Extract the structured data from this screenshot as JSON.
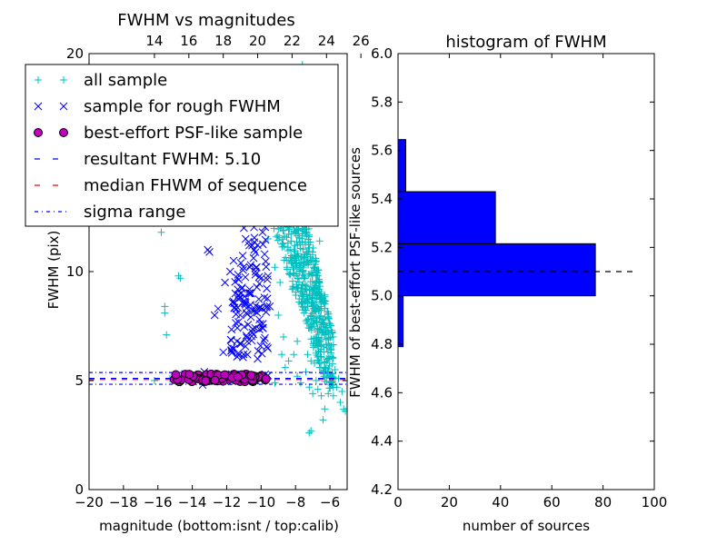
{
  "chart_data": [
    {
      "type": "scatter",
      "title": "FWHM vs magnitudes",
      "xlabel": "magnitude (bottom:isnt / top:calib)",
      "ylabel": "FWHM (pix)",
      "xlim": [
        -20,
        -5
      ],
      "ylim": [
        0,
        20
      ],
      "x_ticks": [
        -20,
        -18,
        -16,
        -14,
        -12,
        -10,
        -8,
        -6
      ],
      "x_tick_labels": [
        "−20",
        "−18",
        "−16",
        "−14",
        "−12",
        "−10",
        "−8",
        "−6"
      ],
      "y_ticks": [
        0,
        5,
        10,
        20
      ],
      "y_tick_labels": [
        "0",
        "5",
        "10",
        "20"
      ],
      "top_ticks": [
        14,
        16,
        18,
        20,
        22,
        24,
        26
      ],
      "top_tick_labels": [
        "14",
        "16",
        "18",
        "20",
        "22",
        "24",
        "26"
      ],
      "top_axis_offset": 30.2,
      "grid": false,
      "legend_position": "top-left",
      "colors": {
        "all_sample": "#00bfbf",
        "rough": "#0000ff",
        "best_fill": "#bf00bf",
        "resultant": "#0000ff",
        "median": "#ff0000",
        "sigma": "#0000ff"
      },
      "legend": [
        {
          "label": "all sample",
          "marker": "plus",
          "color": "#00bfbf"
        },
        {
          "label": "sample for rough FWHM",
          "marker": "x",
          "color": "#0000ff"
        },
        {
          "label": "best-effort PSF-like sample",
          "marker": "circle",
          "color": "#bf00bf"
        },
        {
          "label": "resultant FWHM: 5.10",
          "marker": "dash",
          "color": "#0000ff"
        },
        {
          "label": "median FHWM of sequence",
          "marker": "dash",
          "color": "#ff0000"
        },
        {
          "label": "sigma range",
          "marker": "dashdot",
          "color": "#0000ff"
        }
      ],
      "resultant_fwhm": 5.1,
      "median_fwhm": 5.05,
      "sigma_range": [
        4.83,
        5.37
      ],
      "series": [
        {
          "name": "all sample",
          "points": [
            [
              -15.8,
              11.8
            ],
            [
              -15.6,
              8.4
            ],
            [
              -15.6,
              8.1
            ],
            [
              -15.5,
              7.1
            ],
            [
              -14.8,
              9.8
            ],
            [
              -14.7,
              9.7
            ],
            [
              -16.2,
              5.0
            ],
            [
              -15.3,
              5.1
            ],
            [
              -9.2,
              4.9
            ],
            [
              -8.6,
              5.6
            ],
            [
              -8.4,
              5.9
            ],
            [
              -8.1,
              6.2
            ],
            [
              -7.9,
              5.2
            ],
            [
              -7.7,
              4.9
            ],
            [
              -7.4,
              5.4
            ],
            [
              -7.2,
              4.7
            ],
            [
              -7.0,
              4.4
            ],
            [
              -6.9,
              5.8
            ],
            [
              -6.7,
              4.6
            ],
            [
              -6.5,
              4.3
            ],
            [
              -6.3,
              3.7
            ],
            [
              -6.1,
              4.4
            ],
            [
              -5.8,
              4.3
            ],
            [
              -5.6,
              4.7
            ],
            [
              -5.4,
              4.0
            ],
            [
              -5.2,
              3.7
            ],
            [
              -5.1,
              3.6
            ],
            [
              -7.2,
              2.6
            ],
            [
              -7.1,
              2.7
            ],
            [
              -6.4,
              3.2
            ],
            [
              -7.3,
              12.3
            ],
            [
              -6.6,
              11.4
            ],
            [
              -8.6,
              14.0
            ],
            [
              -8.3,
              17.0
            ],
            [
              -8.0,
              19.0
            ],
            [
              -7.6,
              19.5
            ],
            [
              -8.8,
              18.5
            ],
            [
              -9.1,
              15.5
            ],
            [
              -8.9,
              12.5
            ],
            [
              -8.5,
              10.5
            ],
            [
              -8.2,
              9.2
            ],
            [
              -7.8,
              8.6
            ],
            [
              -7.5,
              8.1
            ],
            [
              -7.1,
              7.5
            ],
            [
              -6.8,
              6.6
            ],
            [
              -6.3,
              5.8
            ],
            [
              -9.4,
              13.0
            ],
            [
              -9.6,
              11.5
            ],
            [
              -8.7,
              7.0
            ],
            [
              -7.9,
              6.8
            ],
            [
              -7.3,
              6.2
            ],
            [
              -6.0,
              5.1
            ],
            [
              -5.7,
              5.5
            ],
            [
              -8.4,
              12.0
            ],
            [
              -8.1,
              11.0
            ],
            [
              -7.7,
              10.2
            ],
            [
              -7.4,
              9.2
            ],
            [
              -7.0,
              7.7
            ],
            [
              -6.5,
              6.6
            ],
            [
              -6.2,
              6.0
            ],
            [
              -5.9,
              4.9
            ],
            [
              -8.9,
              9.5
            ],
            [
              -9.2,
              10.2
            ],
            [
              -9.0,
              8.0
            ],
            [
              -8.8,
              6.2
            ],
            [
              -6.8,
              5.0
            ],
            [
              -6.6,
              5.6
            ],
            [
              -7.1,
              5.9
            ],
            [
              -5.5,
              5.1
            ],
            [
              -5.3,
              4.5
            ]
          ],
          "cloud": {
            "x_range": [
              -9.5,
              -5.8
            ],
            "y_range": [
              4.6,
              19.5
            ],
            "count": 700
          }
        },
        {
          "name": "sample for rough FWHM",
          "points": [
            [
              -13.1,
              11.0
            ],
            [
              -13.0,
              10.9
            ],
            [
              -11.3,
              13.0
            ],
            [
              -11.0,
              12.0
            ],
            [
              -10.9,
              11.5
            ],
            [
              -11.6,
              10.5
            ],
            [
              -11.8,
              10.0
            ],
            [
              -12.1,
              9.5
            ],
            [
              -11.5,
              9.0
            ],
            [
              -11.2,
              8.8
            ],
            [
              -10.7,
              9.0
            ],
            [
              -10.4,
              8.2
            ],
            [
              -10.1,
              7.8
            ],
            [
              -9.9,
              7.6
            ],
            [
              -10.5,
              7.2
            ],
            [
              -10.8,
              6.8
            ],
            [
              -11.7,
              6.5
            ],
            [
              -12.2,
              6.3
            ],
            [
              -11.4,
              6.1
            ],
            [
              -10.2,
              6.0
            ],
            [
              -9.8,
              12.5
            ],
            [
              -9.6,
              13.5
            ],
            [
              -10.0,
              14.2
            ],
            [
              -10.3,
              15.2
            ],
            [
              -9.7,
              16.0
            ],
            [
              -9.9,
              17.0
            ],
            [
              -10.1,
              17.5
            ],
            [
              -10.4,
              11.0
            ],
            [
              -10.6,
              10.3
            ],
            [
              -9.8,
              10.8
            ],
            [
              -12.5,
              8.3
            ],
            [
              -12.7,
              8.0
            ],
            [
              -13.3,
              5.4
            ],
            [
              -13.4,
              4.8
            ],
            [
              -9.6,
              9.8
            ],
            [
              -9.5,
              8.4
            ]
          ],
          "cloud": {
            "x_range": [
              -11.8,
              -9.6
            ],
            "y_range": [
              6.0,
              14.0
            ],
            "count": 120
          }
        },
        {
          "name": "best-effort PSF-like sample",
          "x_range": [
            -15.1,
            -9.6
          ],
          "y_range": [
            4.95,
            5.3
          ],
          "count": 70
        }
      ]
    },
    {
      "type": "bar",
      "orientation": "horizontal",
      "title": "histogram of FWHM",
      "xlabel": "number of sources",
      "ylabel": "FWHM of best-effort PSF-like sources",
      "xlim": [
        0,
        100
      ],
      "ylim": [
        4.2,
        6.0
      ],
      "x_ticks": [
        0,
        20,
        40,
        60,
        80,
        100
      ],
      "y_ticks": [
        4.2,
        4.4,
        4.6,
        4.8,
        5.0,
        5.2,
        5.4,
        5.6,
        5.8,
        6.0
      ],
      "y_tick_labels": [
        "4.2",
        "4.4",
        "4.6",
        "4.8",
        "5.0",
        "5.2",
        "5.4",
        "5.6",
        "5.8",
        "6.0"
      ],
      "grid": false,
      "bar_color": "#0000ff",
      "bins": [
        {
          "low": 4.79,
          "high": 5.0,
          "count": 2
        },
        {
          "low": 5.0,
          "high": 5.215,
          "count": 77
        },
        {
          "low": 5.215,
          "high": 5.43,
          "count": 38
        },
        {
          "low": 5.43,
          "high": 5.645,
          "count": 3
        }
      ],
      "resultant_fwhm": 5.1,
      "resultant_line_range": [
        0,
        93
      ]
    }
  ]
}
